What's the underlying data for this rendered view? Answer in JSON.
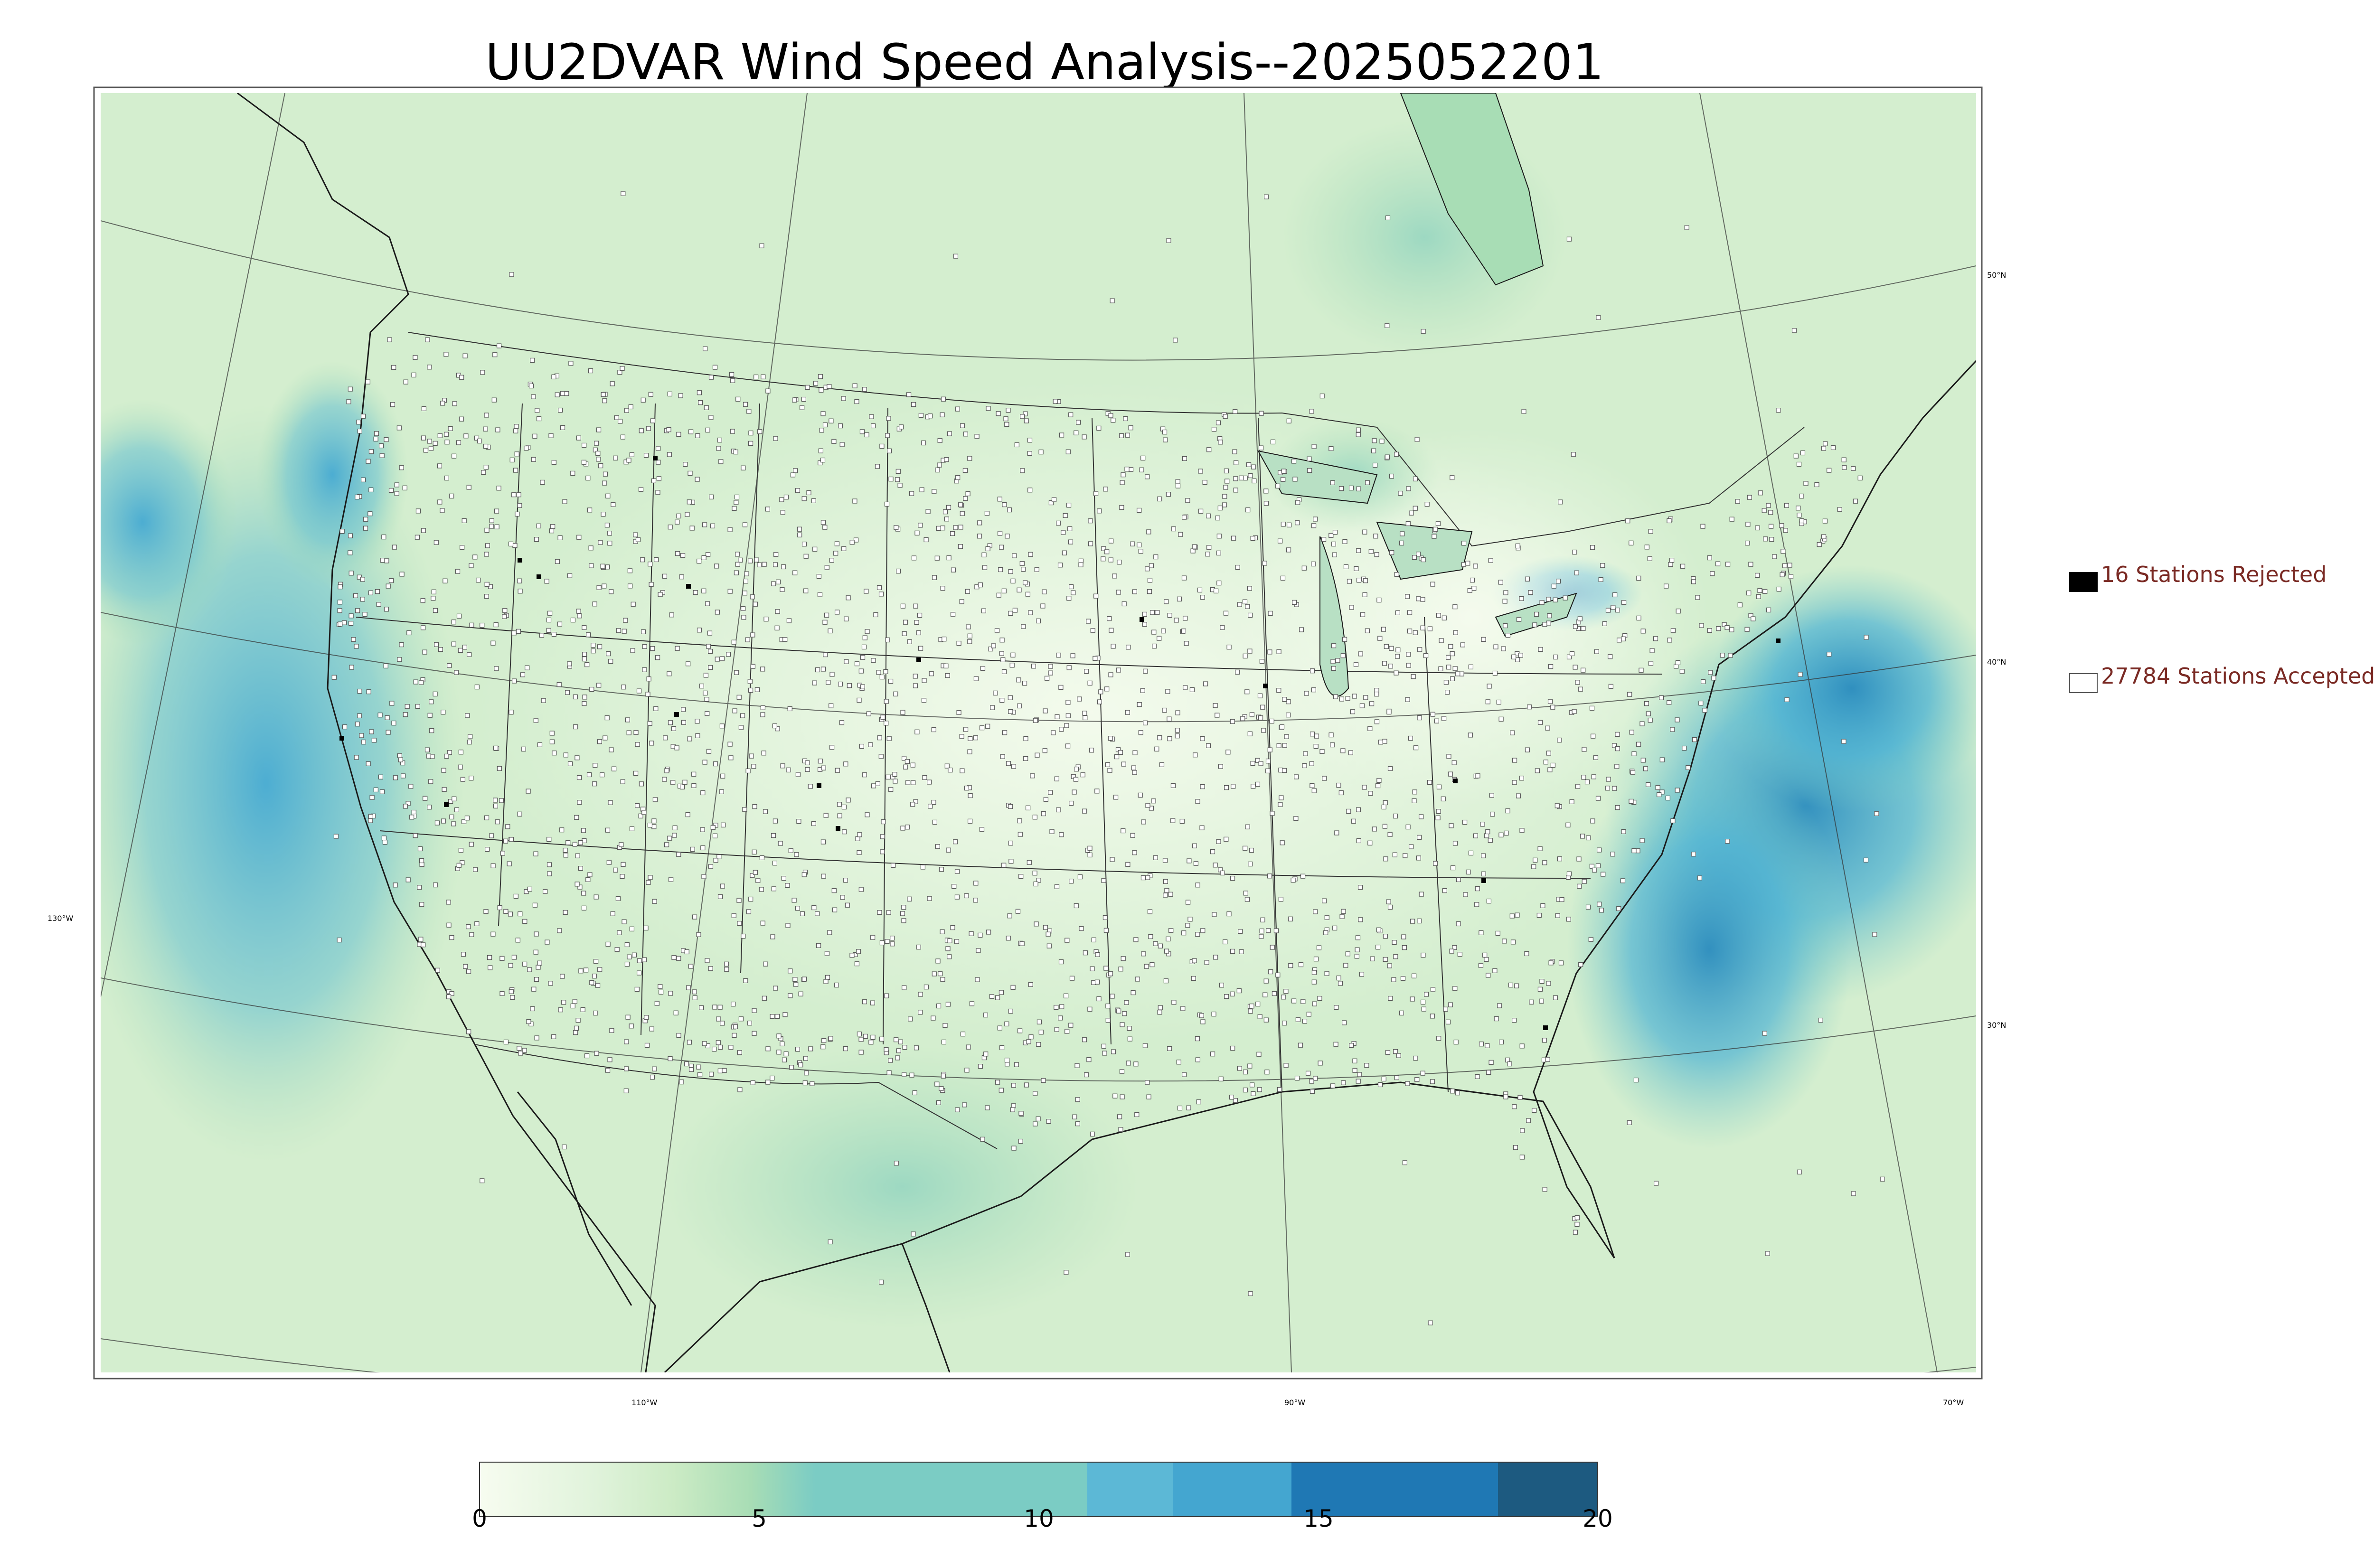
{
  "title": "UU2DVAR Wind Speed Analysis--2025052201",
  "legend": {
    "rejected_label": "16 Stations Rejected",
    "accepted_label": "27784 Stations Accepted",
    "rejected_color": "#000000",
    "accepted_color": "#ffffff"
  },
  "graticule": {
    "lat_labels": [
      "50°N",
      "40°N",
      "30°N"
    ],
    "lon_labels": [
      "130°W",
      "110°W",
      "90°W",
      "70°W"
    ]
  },
  "colorbar": {
    "min": 0,
    "max": 20,
    "ticks": [
      "0",
      "5",
      "10",
      "15",
      "20"
    ],
    "colors": [
      "#f7fcf0",
      "#e0f3db",
      "#ccebc5",
      "#a8ddb5",
      "#7bccc4",
      "#4eb3d3",
      "#2b8cbe",
      "#1f78b4",
      "#1d5a80"
    ]
  },
  "colors": {
    "land_base": "#e3f4dc",
    "ocean_base": "#cdebc9",
    "border": "#1a1a1a"
  }
}
